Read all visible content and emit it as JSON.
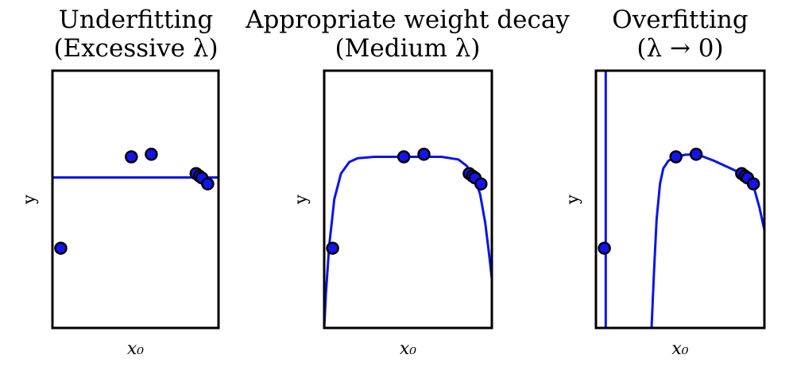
{
  "chart_data": [
    {
      "type": "scatter",
      "title_lines": [
        "Underfitting",
        "(Excessive λ)"
      ],
      "xlabel": "x₀",
      "ylabel": "y",
      "xlim": [
        0,
        1
      ],
      "ylim": [
        0,
        1
      ],
      "points": [
        {
          "x": 0.05,
          "y": 0.31
        },
        {
          "x": 0.475,
          "y": 0.665
        },
        {
          "x": 0.595,
          "y": 0.675
        },
        {
          "x": 0.865,
          "y": 0.6
        },
        {
          "x": 0.885,
          "y": 0.59
        },
        {
          "x": 0.9,
          "y": 0.583
        },
        {
          "x": 0.935,
          "y": 0.56
        }
      ],
      "fit_curve": [
        [
          0.0,
          0.585
        ],
        [
          1.0,
          0.585
        ]
      ]
    },
    {
      "type": "scatter",
      "title_lines": [
        "Appropriate weight decay",
        "(Medium λ)"
      ],
      "xlabel": "x₀",
      "ylabel": "y",
      "xlim": [
        0,
        1
      ],
      "ylim": [
        0,
        1
      ],
      "points": [
        {
          "x": 0.05,
          "y": 0.31
        },
        {
          "x": 0.475,
          "y": 0.665
        },
        {
          "x": 0.595,
          "y": 0.675
        },
        {
          "x": 0.865,
          "y": 0.6
        },
        {
          "x": 0.885,
          "y": 0.59
        },
        {
          "x": 0.9,
          "y": 0.583
        },
        {
          "x": 0.935,
          "y": 0.56
        }
      ],
      "fit_curve": [
        [
          0.0,
          0.0
        ],
        [
          0.01,
          0.13
        ],
        [
          0.03,
          0.32
        ],
        [
          0.06,
          0.5
        ],
        [
          0.1,
          0.6
        ],
        [
          0.15,
          0.645
        ],
        [
          0.2,
          0.66
        ],
        [
          0.3,
          0.665
        ],
        [
          0.5,
          0.665
        ],
        [
          0.7,
          0.665
        ],
        [
          0.8,
          0.655
        ],
        [
          0.85,
          0.63
        ],
        [
          0.9,
          0.58
        ],
        [
          0.93,
          0.52
        ],
        [
          0.96,
          0.41
        ],
        [
          0.985,
          0.28
        ],
        [
          1.0,
          0.19
        ]
      ]
    },
    {
      "type": "scatter",
      "title_lines": [
        "Overfitting",
        "(λ → 0)"
      ],
      "xlabel": "x₀",
      "ylabel": "y",
      "xlim": [
        0,
        1
      ],
      "ylim": [
        0,
        1
      ],
      "points": [
        {
          "x": 0.05,
          "y": 0.31
        },
        {
          "x": 0.475,
          "y": 0.665
        },
        {
          "x": 0.595,
          "y": 0.675
        },
        {
          "x": 0.865,
          "y": 0.6
        },
        {
          "x": 0.885,
          "y": 0.59
        },
        {
          "x": 0.9,
          "y": 0.583
        },
        {
          "x": 0.935,
          "y": 0.56
        }
      ],
      "fit_segments": [
        [
          [
            0.058,
            1.0
          ],
          [
            0.058,
            0.0
          ]
        ],
        [
          [
            0.33,
            0.0
          ],
          [
            0.345,
            0.22
          ],
          [
            0.36,
            0.42
          ],
          [
            0.38,
            0.56
          ],
          [
            0.4,
            0.62
          ],
          [
            0.43,
            0.65
          ],
          [
            0.475,
            0.665
          ],
          [
            0.53,
            0.673
          ],
          [
            0.6,
            0.675
          ],
          [
            0.7,
            0.65
          ],
          [
            0.8,
            0.62
          ],
          [
            0.865,
            0.6
          ],
          [
            0.9,
            0.583
          ],
          [
            0.94,
            0.54
          ],
          [
            0.97,
            0.47
          ],
          [
            1.0,
            0.38
          ]
        ]
      ]
    }
  ]
}
